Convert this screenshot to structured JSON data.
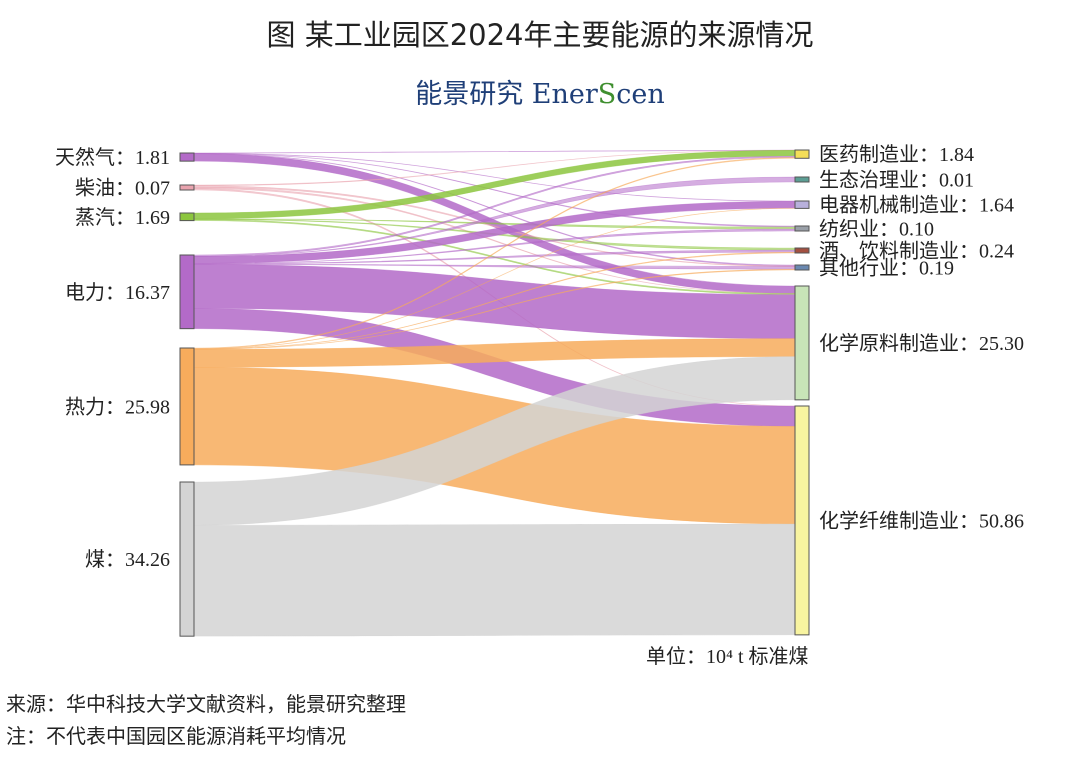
{
  "title": "图 某工业园区2024年主要能源的来源情况",
  "brand": {
    "cn": "能景研究",
    "en_a": "Ener",
    "en_s": "S",
    "en_b": "cen"
  },
  "unit_label": "单位：10⁴ t 标准煤",
  "source_note": "来源：华中科技大学文献资料，能景研究整理",
  "remark_note": "注：不代表中国园区能源消耗平均情况",
  "chart_data": {
    "type": "sankey",
    "sources": [
      {
        "name": "天然气",
        "value": 1.81,
        "label": "天然气：1.81",
        "color": "#b36ac8"
      },
      {
        "name": "柴油",
        "value": 0.07,
        "label": "柴油：0.07",
        "color": "#e9a3ae"
      },
      {
        "name": "蒸汽",
        "value": 1.69,
        "label": "蒸汽：1.69",
        "color": "#8cc63e"
      },
      {
        "name": "电力",
        "value": 16.37,
        "label": "电力：16.37",
        "color": "#b36ac8"
      },
      {
        "name": "热力",
        "value": 25.98,
        "label": "热力：25.98",
        "color": "#f7ac5c"
      },
      {
        "name": "煤",
        "value": 34.26,
        "label": "煤：34.26",
        "color": "#d4d4d4"
      }
    ],
    "targets": [
      {
        "name": "医药制造业",
        "value": 1.84,
        "label": "医药制造业：1.84",
        "color": "#f4de58"
      },
      {
        "name": "生态治理业",
        "value": 0.01,
        "label": "生态治理业：0.01",
        "color": "#5c9e94"
      },
      {
        "name": "电器机械制造业",
        "value": 1.64,
        "label": "电器机械制造业：1.64",
        "color": "#b8b0dc"
      },
      {
        "name": "纺织业",
        "value": 0.1,
        "label": "纺织业：0.10",
        "color": "#9aa0a8"
      },
      {
        "name": "酒、饮料制造业",
        "value": 0.24,
        "label": "酒、饮料制造业：0.24",
        "color": "#a35040"
      },
      {
        "name": "其他行业",
        "value": 0.19,
        "label": "其他行业：0.19",
        "color": "#6a88b0"
      },
      {
        "name": "化学原料制造业",
        "value": 25.3,
        "label": "化学原料制造业：25.30",
        "color": "#c8e4b8"
      },
      {
        "name": "化学纤维制造业",
        "value": 50.86,
        "label": "化学纤维制造业：50.86",
        "color": "#f8f4a0"
      }
    ],
    "flows": [
      {
        "source": "天然气",
        "target": "医药制造业",
        "value": 0.05
      },
      {
        "source": "天然气",
        "target": "电器机械制造业",
        "value": 0.05
      },
      {
        "source": "天然气",
        "target": "纺织业",
        "value": 0.02
      },
      {
        "source": "天然气",
        "target": "其他行业",
        "value": 0.04
      },
      {
        "source": "天然气",
        "target": "化学原料制造业",
        "value": 1.65
      },
      {
        "source": "柴油",
        "target": "医药制造业",
        "value": 0.01
      },
      {
        "source": "柴油",
        "target": "其他行业",
        "value": 0.02
      },
      {
        "source": "柴油",
        "target": "化学原料制造业",
        "value": 0.02
      },
      {
        "source": "柴油",
        "target": "化学纤维制造业",
        "value": 0.02
      },
      {
        "source": "蒸汽",
        "target": "医药制造业",
        "value": 1.3
      },
      {
        "source": "蒸汽",
        "target": "纺织业",
        "value": 0.04
      },
      {
        "source": "蒸汽",
        "target": "酒、饮料制造业",
        "value": 0.1
      },
      {
        "source": "蒸汽",
        "target": "化学原料制造业",
        "value": 0.25
      },
      {
        "source": "电力",
        "target": "医药制造业",
        "value": 0.3
      },
      {
        "source": "电力",
        "target": "生态治理业",
        "value": 0.01
      },
      {
        "source": "电力",
        "target": "电器机械制造业",
        "value": 1.55
      },
      {
        "source": "电力",
        "target": "纺织业",
        "value": 0.04
      },
      {
        "source": "电力",
        "target": "酒、饮料制造业",
        "value": 0.1
      },
      {
        "source": "电力",
        "target": "其他行业",
        "value": 0.1
      },
      {
        "source": "电力",
        "target": "化学原料制造业",
        "value": 9.77
      },
      {
        "source": "电力",
        "target": "化学纤维制造业",
        "value": 4.5
      },
      {
        "source": "热力",
        "target": "医药制造业",
        "value": 0.18
      },
      {
        "source": "热力",
        "target": "电器机械制造业",
        "value": 0.04
      },
      {
        "source": "热力",
        "target": "酒、饮料制造业",
        "value": 0.04
      },
      {
        "source": "热力",
        "target": "其他行业",
        "value": 0.03
      },
      {
        "source": "热力",
        "target": "化学原料制造业",
        "value": 4.0
      },
      {
        "source": "热力",
        "target": "化学纤维制造业",
        "value": 21.69
      },
      {
        "source": "煤",
        "target": "化学原料制造业",
        "value": 9.61
      },
      {
        "source": "煤",
        "target": "化学纤维制造业",
        "value": 24.65
      }
    ]
  }
}
